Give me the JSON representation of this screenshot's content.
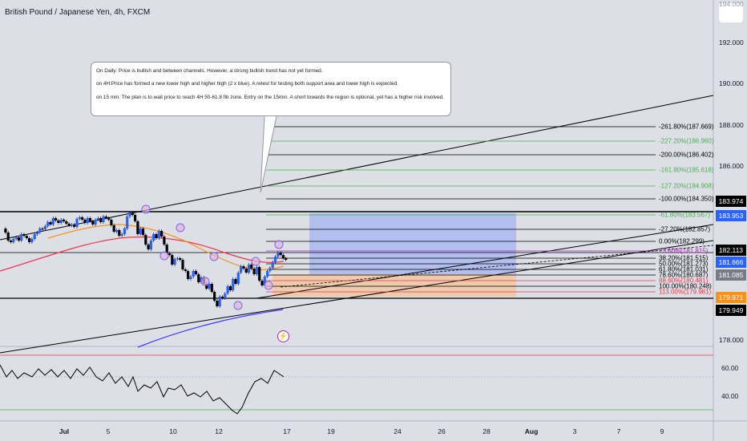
{
  "title": "British Pound / Japanese Yen, 4h, FXCM",
  "note": {
    "lines": [
      "On Daily: Price is bullish and between channels. However, a strong bullish trend has not yet formed.",
      "on 4H:Price has formed a new lower high and higher high (2 x blue). A retest for testing both support area and lower high is expected.",
      "on 15 min: The plan is to wait price to reach 4H 50-61.8 fib zone. Entry on the 15min. A short towards the region is optional, yet has a higher risk involved."
    ]
  },
  "price_axis": {
    "labels": [
      "194.000",
      "192.000",
      "190.000",
      "188.000",
      "186.000",
      "178.000"
    ]
  },
  "indicator_axis": {
    "labels": [
      "60.00",
      "40.00"
    ]
  },
  "price_tags": [
    {
      "text": "183.974",
      "bg": "#000000"
    },
    {
      "text": "183.953",
      "bg": "#2962ff"
    },
    {
      "text": "182.113",
      "bg": "#000000"
    },
    {
      "text": "181.666",
      "bg": "#2962ff"
    },
    {
      "text": "181.085",
      "bg": "#787b86"
    },
    {
      "text": "179.971",
      "bg": "#f7931a"
    },
    {
      "text": "179.949",
      "bg": "#000000"
    }
  ],
  "date_axis": [
    "Jul",
    "5",
    "10",
    "12",
    "17",
    "19",
    "24",
    "26",
    "28",
    "Aug",
    "3",
    "7",
    "9"
  ],
  "fib_levels": [
    {
      "text": "-261.80%(187.669)",
      "color": "#000000"
    },
    {
      "text": "-227.20%(186.960)",
      "color": "#4caf50"
    },
    {
      "text": "-200.00%(186.402)",
      "color": "#000000"
    },
    {
      "text": "-161.80%(185.618)",
      "color": "#4caf50"
    },
    {
      "text": "-127.20%(184.908)",
      "color": "#4caf50"
    },
    {
      "text": "-100.00%(184.350)",
      "color": "#000000"
    },
    {
      "text": "-61.80%(183.567)",
      "color": "#4caf50"
    },
    {
      "text": "-27.20%(182.857)",
      "color": "#000000"
    },
    {
      "text": "0.00%(182.299)",
      "color": "#000000"
    },
    {
      "text": "23.60%(181.815)",
      "color": "#9c27b0"
    },
    {
      "text": "38.20%(181.515)",
      "color": "#000000"
    },
    {
      "text": "50.00%(181.273)",
      "color": "#000000"
    },
    {
      "text": "61.80%(181.031)",
      "color": "#000000"
    },
    {
      "text": "78.60%(180.687)",
      "color": "#000000"
    },
    {
      "text": "88.60%(180.481)",
      "color": "#f23645"
    },
    {
      "text": "100.00%(180.248)",
      "color": "#000000"
    },
    {
      "text": "113.00%(179.981)",
      "color": "#f23645"
    }
  ],
  "colors": {
    "background": "#dcdfe6",
    "candle_bull": "#2962ff",
    "candle_bear": "#000000",
    "ma_red": "#f23645",
    "ma_orange": "#f7931a",
    "ma_blue": "#3d3dff",
    "long_target": "#a9b9ee",
    "long_stop": "#f0c9a5"
  },
  "icons": {
    "alert": "lightning-icon"
  }
}
